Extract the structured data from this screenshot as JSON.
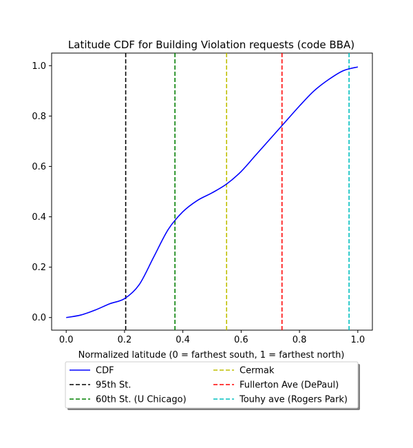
{
  "chart_data": {
    "type": "line",
    "title": "Latitude CDF for Building Violation  requests (code BBA)",
    "xlabel": "Normalized latitude (0 = farthest south, 1 = farthest north)",
    "ylabel": "",
    "xlim": [
      -0.05,
      1.05
    ],
    "ylim": [
      -0.05,
      1.05
    ],
    "xticks": [
      0.0,
      0.2,
      0.4,
      0.6,
      0.8,
      1.0
    ],
    "xtick_labels": [
      "0.0",
      "0.2",
      "0.4",
      "0.6",
      "0.8",
      "1.0"
    ],
    "yticks": [
      0.0,
      0.2,
      0.4,
      0.6,
      0.8,
      1.0
    ],
    "ytick_labels": [
      "0.0",
      "0.2",
      "0.4",
      "0.6",
      "0.8",
      "1.0"
    ],
    "grid": false,
    "legend_placement": "below plot, two columns, shadowed box",
    "series": [
      {
        "name": "CDF",
        "color": "#0000ff",
        "style": "solid",
        "x": [
          0.0,
          0.05,
          0.1,
          0.15,
          0.2,
          0.25,
          0.3,
          0.35,
          0.4,
          0.45,
          0.5,
          0.55,
          0.6,
          0.65,
          0.7,
          0.75,
          0.8,
          0.85,
          0.9,
          0.95,
          1.0
        ],
        "y": [
          0.0,
          0.01,
          0.03,
          0.055,
          0.075,
          0.13,
          0.24,
          0.35,
          0.42,
          0.465,
          0.495,
          0.53,
          0.58,
          0.645,
          0.71,
          0.775,
          0.84,
          0.9,
          0.945,
          0.98,
          0.995
        ]
      }
    ],
    "vlines": [
      {
        "name": "95th St.",
        "x": 0.204,
        "color": "#000000",
        "style": "dashed"
      },
      {
        "name": "60th St. (U Chicago)",
        "x": 0.373,
        "color": "#008000",
        "style": "dashed"
      },
      {
        "name": "Cermak",
        "x": 0.55,
        "color": "#bfbf00",
        "style": "dashed"
      },
      {
        "name": "Fullerton Ave (DePaul)",
        "x": 0.74,
        "color": "#ff0000",
        "style": "dashed"
      },
      {
        "name": "Touhy ave (Rogers Park)",
        "x": 0.97,
        "color": "#00bfbf",
        "style": "dashed"
      }
    ],
    "legend_columns": [
      [
        "CDF",
        "95th St.",
        "60th St. (U Chicago)"
      ],
      [
        "Cermak",
        "Fullerton Ave (DePaul)",
        "Touhy ave (Rogers Park)"
      ]
    ]
  }
}
